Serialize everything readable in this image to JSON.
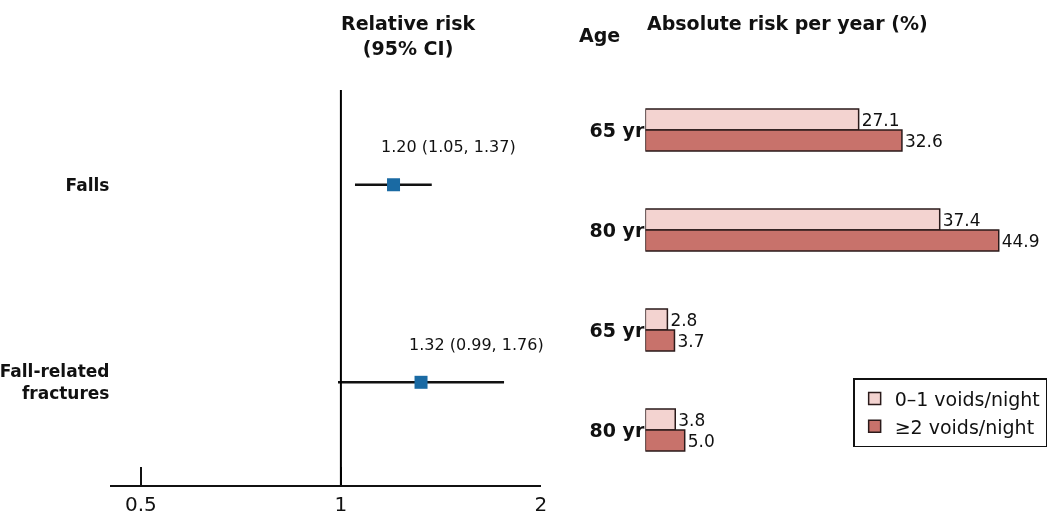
{
  "chart_data": [
    {
      "type": "scatter",
      "title": "Relative risk\n(95% CI)",
      "categories": [
        "Falls",
        "Fall-related fractures"
      ],
      "orientation": "horizontal",
      "values": [
        1.2,
        1.32
      ],
      "errors": [
        [
          1.05,
          1.37
        ],
        [
          0.99,
          1.76
        ]
      ],
      "value_labels": [
        "1.20 (1.05, 1.37)",
        "1.32 (0.99, 1.76)"
      ],
      "color": "#1a6aa3",
      "marker": "square",
      "log": "x",
      "xlim": [
        0.45,
        2
      ],
      "xticks": [
        0.5,
        1,
        2
      ],
      "ref_lines": [
        {
          "axis": "x",
          "value": 1,
          "color": "#000000"
        }
      ]
    },
    {
      "type": "bar",
      "orientation": "horizontal",
      "title": "Absolute risk per year (%)",
      "ylabel": "Age",
      "categories": [
        "65 yr",
        "80 yr",
        "65 yr",
        "80 yr"
      ],
      "series": [
        {
          "name": "0–1 voids/night",
          "color": "#f3d3d0",
          "values": [
            27.1,
            37.4,
            2.8,
            3.8
          ],
          "value_labels": [
            "27.1",
            "37.4",
            "2.8",
            "3.8"
          ]
        },
        {
          "name": "≥2 voids/night",
          "color": "#c8726b",
          "values": [
            32.6,
            44.9,
            3.7,
            5.0
          ],
          "value_labels": [
            "32.6",
            "44.9",
            "3.7",
            "5.0"
          ]
        }
      ],
      "legend": "bottom right"
    }
  ]
}
